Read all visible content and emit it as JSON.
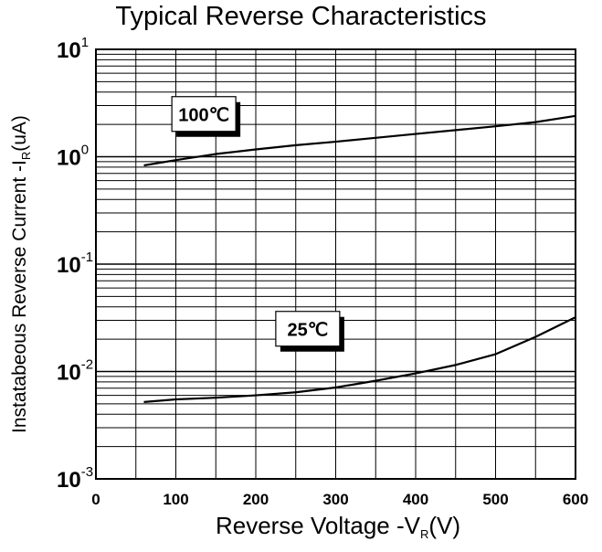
{
  "chart_data": {
    "type": "line",
    "title": "Typical Reverse Characteristics",
    "xlabel": {
      "prefix": "Reverse  Voltage -V",
      "sub": "R",
      "suffix": "(V)"
    },
    "ylabel": {
      "prefix": "Instatabeous Reverse Current -I",
      "sub": "R",
      "suffix": "(uA)"
    },
    "xlim": [
      0,
      600
    ],
    "ylim": [
      0.001,
      10
    ],
    "yscale": "log",
    "grid": true,
    "x_ticks": [
      "0",
      "100",
      "200",
      "300",
      "400",
      "500",
      "600"
    ],
    "y_ticks": [
      {
        "base": "10",
        "exp": "1"
      },
      {
        "base": "10",
        "exp": "0"
      },
      {
        "base": "10",
        "exp": "-1"
      },
      {
        "base": "10",
        "exp": "-2"
      },
      {
        "base": "10",
        "exp": "-3"
      }
    ],
    "series": [
      {
        "name": "100℃",
        "x": [
          60,
          100,
          150,
          200,
          250,
          300,
          350,
          400,
          450,
          500,
          550,
          600
        ],
        "y": [
          0.83,
          0.93,
          1.06,
          1.17,
          1.28,
          1.38,
          1.5,
          1.63,
          1.77,
          1.92,
          2.1,
          2.4
        ]
      },
      {
        "name": "25℃",
        "x": [
          60,
          100,
          150,
          200,
          250,
          300,
          350,
          400,
          450,
          500,
          550,
          600
        ],
        "y": [
          0.0052,
          0.0055,
          0.0057,
          0.006,
          0.0064,
          0.0071,
          0.0082,
          0.0096,
          0.0115,
          0.0145,
          0.021,
          0.032
        ]
      }
    ],
    "annotations": [
      {
        "text": "100℃",
        "series": 0,
        "x": 135,
        "y": 2.5
      },
      {
        "text": "25℃",
        "series": 1,
        "x": 265,
        "y": 0.025
      }
    ]
  }
}
